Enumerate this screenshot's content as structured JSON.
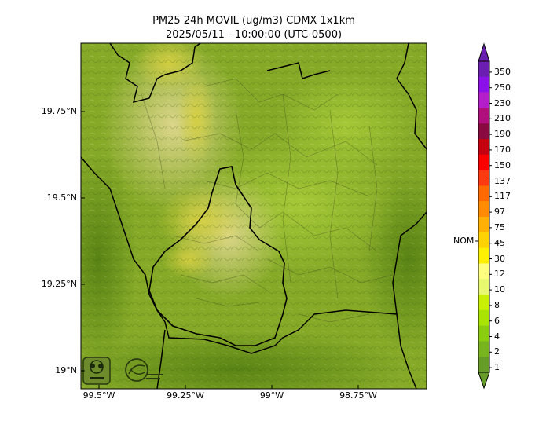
{
  "title": "PM25 24h MOVIL (ug/m3) CDMX 1x1km",
  "subtitle": "2025/05/11 - 10:00:00 (UTC-0500)",
  "lat_labels": [
    "19.75°N",
    "19.5°N",
    "19.25°N",
    "19°N"
  ],
  "lon_labels": [
    "99.5°W",
    "99.25°W",
    "99°W",
    "98.75°W"
  ],
  "colorbar": {
    "labels": [
      "350",
      "250",
      "230",
      "210",
      "190",
      "170",
      "150",
      "137",
      "117",
      "97",
      "75",
      "45",
      "30",
      "12",
      "10",
      "8",
      "6",
      "4",
      "2",
      "1"
    ],
    "colors": [
      "#6a1fb0",
      "#8c10e8",
      "#b21fc8",
      "#b0107c",
      "#880a40",
      "#c60010",
      "#ff0000",
      "#ff3a10",
      "#ff6a00",
      "#ff8c00",
      "#ffb000",
      "#ffd200",
      "#fff000",
      "#ffff80",
      "#e8f870",
      "#c8f000",
      "#a8e400",
      "#8ccc10",
      "#78b420",
      "#669c28"
    ],
    "nom_label": "NOM"
  },
  "logos": [
    "SEDEMA",
    "Calidad del Aire"
  ]
}
